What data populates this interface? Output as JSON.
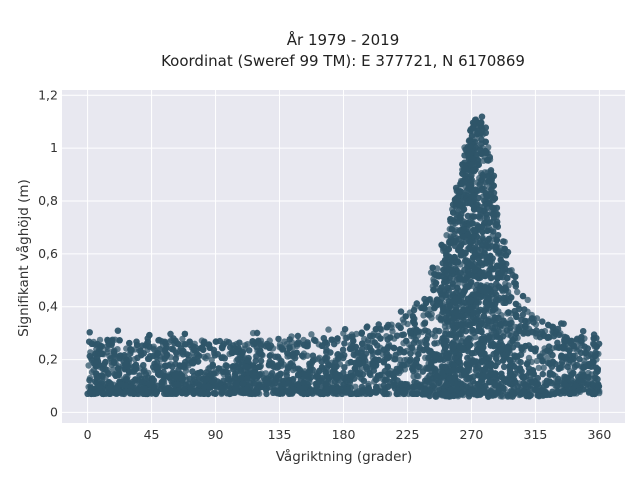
{
  "chart_data": {
    "type": "scatter",
    "title": "År 1979 - 2019",
    "subtitle": "Koordinat (Sweref 99 TM): E 377721, N 6170869",
    "xlabel": "Vågriktning (grader)",
    "ylabel": "Signifikant våghöjd (m)",
    "xlim": [
      -18,
      378
    ],
    "ylim": [
      -0.04,
      1.22
    ],
    "xticks": [
      0,
      45,
      90,
      135,
      180,
      225,
      270,
      315,
      360
    ],
    "yticks": [
      0,
      0.2,
      0.4,
      0.6,
      0.8,
      1,
      1.2
    ],
    "ytick_labels": [
      "0",
      "0,2",
      "0,4",
      "0,6",
      "0,8",
      "1",
      "1,2"
    ],
    "grid": true,
    "legend": "none",
    "colors": {
      "points": "#2f5569",
      "background": "#e8e8f0",
      "grid": "#ffffff"
    },
    "envelope": {
      "x": [
        0,
        20,
        45,
        70,
        90,
        110,
        135,
        160,
        180,
        200,
        220,
        230,
        240,
        250,
        257,
        263,
        268,
        272,
        276,
        280,
        285,
        290,
        297,
        305,
        315,
        330,
        345,
        360
      ],
      "y_low": [
        0.07,
        0.07,
        0.07,
        0.07,
        0.07,
        0.07,
        0.07,
        0.07,
        0.07,
        0.07,
        0.07,
        0.07,
        0.06,
        0.06,
        0.06,
        0.06,
        0.06,
        0.06,
        0.06,
        0.06,
        0.06,
        0.06,
        0.06,
        0.06,
        0.06,
        0.07,
        0.07,
        0.07
      ],
      "y_high": [
        0.28,
        0.28,
        0.28,
        0.28,
        0.27,
        0.27,
        0.28,
        0.28,
        0.29,
        0.31,
        0.36,
        0.4,
        0.48,
        0.62,
        0.78,
        0.92,
        1.05,
        1.12,
        1.12,
        1.05,
        0.9,
        0.72,
        0.55,
        0.45,
        0.38,
        0.32,
        0.3,
        0.28
      ]
    },
    "point_count": 6500
  }
}
